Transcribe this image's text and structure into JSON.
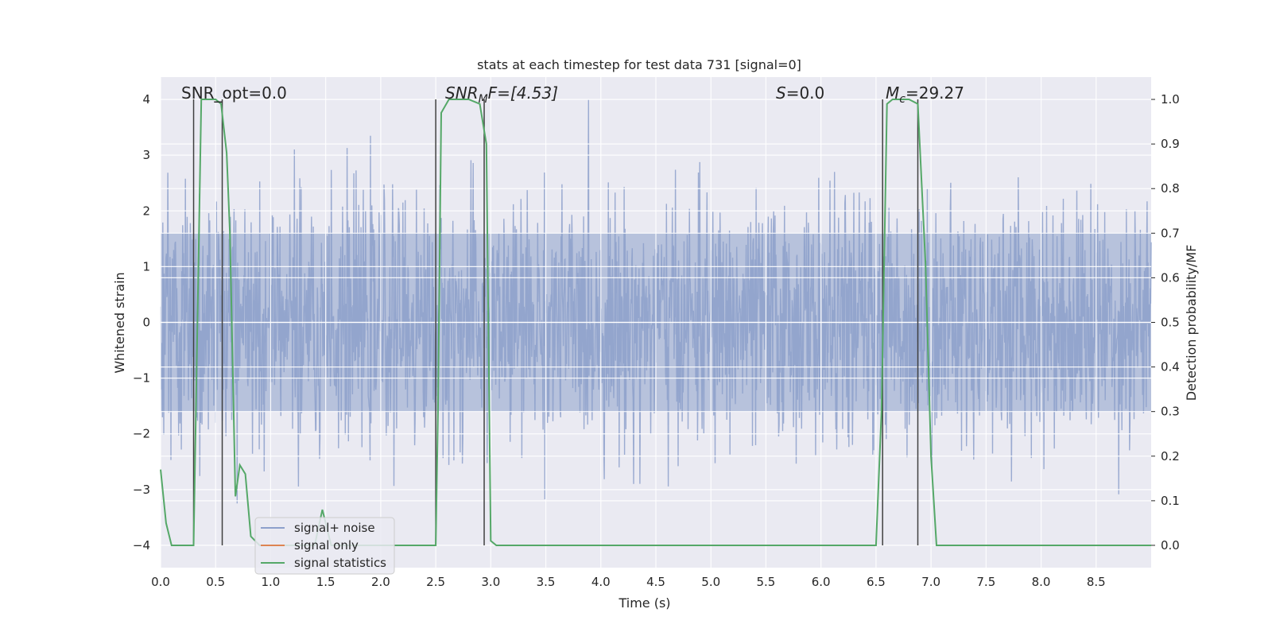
{
  "chart_data": {
    "type": "line",
    "title": "stats at each timestep for test data 731 [signal=0]",
    "xlabel": "Time (s)",
    "ylabel_left": "Whitened strain",
    "ylabel_right": "Detection probability/MF",
    "xlim": [
      0.0,
      9.0
    ],
    "ylim_left": [
      -4.4,
      4.4
    ],
    "ylim_right": [
      -0.05,
      1.05
    ],
    "x_ticks": [
      "0.0",
      "0.5",
      "1.0",
      "1.5",
      "2.0",
      "2.5",
      "3.0",
      "3.5",
      "4.0",
      "4.5",
      "5.0",
      "5.5",
      "6.0",
      "6.5",
      "7.0",
      "7.5",
      "8.0",
      "8.5"
    ],
    "y_ticks_left": [
      "4",
      "3",
      "2",
      "1",
      "0",
      "−1",
      "−2",
      "−3",
      "−4"
    ],
    "y_ticks_right": [
      "1.0",
      "0.9",
      "0.8",
      "0.7",
      "0.6",
      "0.5",
      "0.4",
      "0.3",
      "0.2",
      "0.1",
      "0.0"
    ],
    "grid": true,
    "annotations": {
      "snr_opt": "SNR_opt=0.0",
      "snr_mf_main": "SNR",
      "snr_mf_sub": "M",
      "snr_mf_rest": "F=[4.53]",
      "s_italic": "S",
      "s_rest": "=0.0",
      "mc_main": "M",
      "mc_sub": "c",
      "mc_rest": "=29.27"
    },
    "legend": {
      "placement": "lower-left",
      "entries": [
        "signal+ noise",
        "signal only",
        "signal statistics"
      ]
    },
    "colors": {
      "noise": "#8da0cb",
      "signal_only": "#dd8452",
      "statistics": "#55a868",
      "markers": "#404040",
      "background": "#eaeaf2"
    },
    "series": [
      {
        "name": "signal statistics",
        "axis": "right",
        "x": [
          0.0,
          0.05,
          0.1,
          0.25,
          0.3,
          0.37,
          0.5,
          0.55,
          0.6,
          0.63,
          0.68,
          0.72,
          0.77,
          0.82,
          0.9,
          1.0,
          1.2,
          1.4,
          1.47,
          1.55,
          1.65,
          1.75,
          2.5,
          2.52,
          2.55,
          2.62,
          2.7,
          2.8,
          2.9,
          2.96,
          3.0,
          3.05,
          3.1,
          3.5,
          4.0,
          5.0,
          6.0,
          6.5,
          6.55,
          6.6,
          6.65,
          6.7,
          6.8,
          6.88,
          6.95,
          7.0,
          7.05,
          7.5,
          8.0,
          9.0
        ],
        "y": [
          0.17,
          0.05,
          0.0,
          0.0,
          0.0,
          1.0,
          1.0,
          0.99,
          0.88,
          0.7,
          0.11,
          0.18,
          0.16,
          0.02,
          0.0,
          0.0,
          0.0,
          0.0,
          0.08,
          0.0,
          0.0,
          0.0,
          0.0,
          0.3,
          0.97,
          1.0,
          1.0,
          1.0,
          0.99,
          0.9,
          0.01,
          0.0,
          0.0,
          0.0,
          0.0,
          0.0,
          0.0,
          0.0,
          0.3,
          0.99,
          1.0,
          1.0,
          1.0,
          0.99,
          0.63,
          0.2,
          0.0,
          0.0,
          0.0,
          0.0
        ]
      }
    ],
    "marker_lines_x": [
      0.3,
      0.56,
      2.5,
      2.94,
      6.56,
      6.88
    ],
    "noise_envelope": {
      "name": "signal+ noise",
      "axis": "left",
      "dense_band": [
        -1.6,
        1.6
      ],
      "peak_max": 4.0,
      "peak_min": -4.0
    }
  }
}
